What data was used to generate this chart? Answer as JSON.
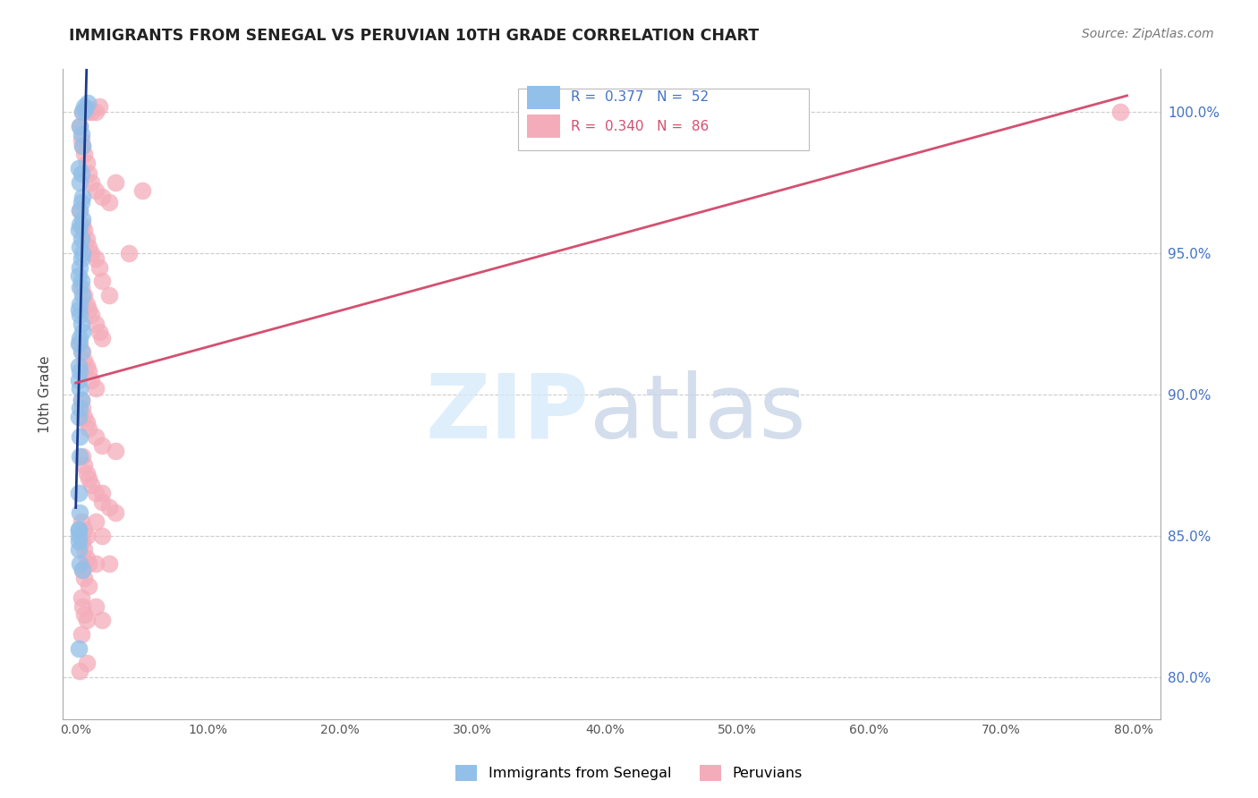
{
  "title": "IMMIGRANTS FROM SENEGAL VS PERUVIAN 10TH GRADE CORRELATION CHART",
  "source": "Source: ZipAtlas.com",
  "ylabel": "10th Grade",
  "y_ticks": [
    80.0,
    85.0,
    90.0,
    95.0,
    100.0
  ],
  "x_ticks": [
    0.0,
    10.0,
    20.0,
    30.0,
    40.0,
    50.0,
    60.0,
    70.0,
    80.0
  ],
  "x_range": [
    -1.0,
    82.0
  ],
  "y_range": [
    78.5,
    101.5
  ],
  "blue_color": "#92C0E8",
  "pink_color": "#F4ACBA",
  "blue_line_color": "#1A3B8A",
  "pink_line_color": "#D45070",
  "blue_scatter_x": [
    0.5,
    0.6,
    0.7,
    0.9,
    0.3,
    0.4,
    0.5,
    0.2,
    0.4,
    0.3,
    0.5,
    0.4,
    0.3,
    0.5,
    0.3,
    0.2,
    0.4,
    0.3,
    0.5,
    0.4,
    0.3,
    0.2,
    0.4,
    0.3,
    0.5,
    0.3,
    0.2,
    0.3,
    0.4,
    0.5,
    0.3,
    0.2,
    0.4,
    0.2,
    0.3,
    0.2,
    0.3,
    0.4,
    0.3,
    0.2,
    0.3,
    0.3,
    0.2,
    0.3,
    0.2,
    0.2,
    0.3,
    0.5,
    0.2,
    0.2,
    0.2,
    0.2
  ],
  "blue_scatter_y": [
    100.0,
    100.2,
    100.1,
    100.3,
    99.5,
    99.2,
    98.8,
    98.0,
    97.8,
    97.5,
    97.0,
    96.8,
    96.5,
    96.2,
    96.0,
    95.8,
    95.5,
    95.2,
    95.0,
    94.8,
    94.5,
    94.2,
    94.0,
    93.8,
    93.5,
    93.2,
    93.0,
    92.8,
    92.5,
    92.2,
    92.0,
    91.8,
    91.5,
    91.0,
    90.8,
    90.5,
    90.2,
    89.8,
    89.5,
    89.2,
    88.5,
    87.8,
    86.5,
    85.8,
    85.2,
    84.5,
    84.0,
    83.8,
    85.0,
    85.2,
    84.8,
    81.0
  ],
  "pink_scatter_x": [
    0.5,
    0.8,
    1.0,
    1.2,
    1.5,
    1.8,
    0.3,
    0.4,
    0.5,
    0.6,
    0.8,
    1.0,
    1.2,
    1.5,
    2.0,
    2.5,
    3.0,
    0.3,
    0.5,
    0.6,
    0.8,
    1.0,
    1.2,
    1.5,
    1.8,
    2.0,
    0.4,
    0.6,
    0.8,
    1.0,
    1.2,
    1.5,
    1.8,
    2.0,
    2.5,
    0.3,
    0.5,
    0.6,
    0.8,
    1.0,
    1.2,
    1.5,
    0.4,
    0.5,
    0.6,
    0.8,
    1.0,
    1.5,
    2.0,
    3.0,
    4.0,
    5.0,
    0.5,
    0.6,
    0.8,
    1.0,
    1.2,
    1.5,
    2.0,
    2.5,
    3.0,
    0.4,
    0.6,
    0.8,
    0.5,
    0.6,
    0.8,
    1.0,
    1.5,
    2.0,
    0.5,
    0.6,
    1.0,
    1.5,
    2.0,
    0.4,
    0.5,
    0.6,
    0.8,
    1.5,
    2.5,
    0.4,
    0.8,
    79.0,
    0.3,
    2.0
  ],
  "pink_scatter_y": [
    100.0,
    100.0,
    100.1,
    100.0,
    100.0,
    100.2,
    99.5,
    99.0,
    98.8,
    98.5,
    98.2,
    97.8,
    97.5,
    97.2,
    97.0,
    96.8,
    97.5,
    96.5,
    96.0,
    95.8,
    95.5,
    95.2,
    95.0,
    94.8,
    94.5,
    94.0,
    93.8,
    93.5,
    93.2,
    93.0,
    92.8,
    92.5,
    92.2,
    92.0,
    93.5,
    91.8,
    91.5,
    91.2,
    91.0,
    90.8,
    90.5,
    90.2,
    89.8,
    89.5,
    89.2,
    89.0,
    88.8,
    88.5,
    88.2,
    88.0,
    95.0,
    97.2,
    87.8,
    87.5,
    87.2,
    87.0,
    86.8,
    86.5,
    86.2,
    86.0,
    85.8,
    85.5,
    85.2,
    85.0,
    84.8,
    84.5,
    84.2,
    84.0,
    85.5,
    86.5,
    83.8,
    83.5,
    83.2,
    84.0,
    85.0,
    82.8,
    82.5,
    82.2,
    82.0,
    82.5,
    84.0,
    81.5,
    80.5,
    100.0,
    80.2,
    82.0
  ]
}
